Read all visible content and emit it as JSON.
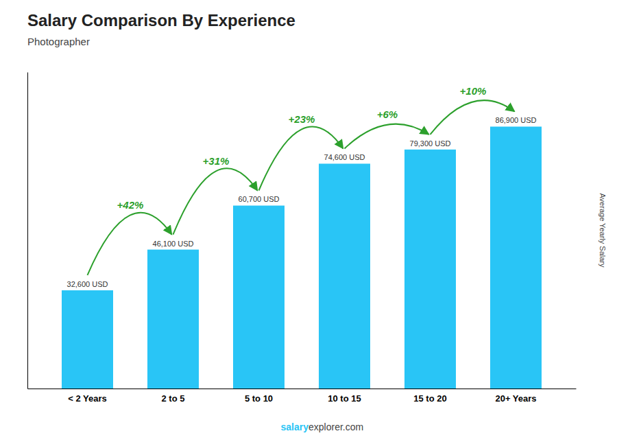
{
  "chart_data": {
    "type": "bar",
    "title": "Salary Comparison By Experience",
    "subtitle": "Photographer",
    "categories": [
      "< 2 Years",
      "2 to 5",
      "5 to 10",
      "10 to 15",
      "15 to 20",
      "20+ Years"
    ],
    "values": [
      32600,
      46100,
      60700,
      74600,
      79300,
      86900
    ],
    "value_labels": [
      "32,600 USD",
      "46,100 USD",
      "60,700 USD",
      "74,600 USD",
      "79,300 USD",
      "86,900 USD"
    ],
    "data_labels": true,
    "annotations": [
      "+42%",
      "+31%",
      "+23%",
      "+6%",
      "+10%"
    ],
    "color": "#29c5f6",
    "ylabel": "Average Yearly Salary",
    "footer": [
      "salary",
      "explorer.com"
    ],
    "ylim": [
      0,
      105000
    ],
    "tick_labels": "x",
    "grid": false
  }
}
